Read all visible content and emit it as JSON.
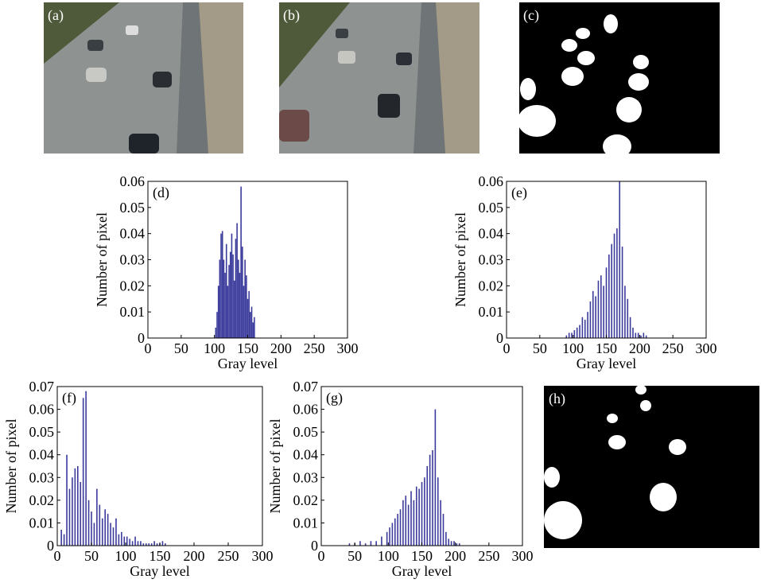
{
  "image_labels": [
    "(a)",
    "(b)",
    "(c)",
    "(h)"
  ],
  "chart_data": [
    {
      "type": "bar",
      "label": "(d)",
      "xlabel": "Gray level",
      "ylabel": "Number of pixel",
      "color": "#3b3b9c",
      "x": [
        102,
        104,
        106,
        108,
        110,
        112,
        114,
        116,
        118,
        120,
        122,
        124,
        126,
        128,
        130,
        132,
        134,
        136,
        138,
        140,
        142,
        144,
        146,
        148,
        150,
        152,
        154,
        156,
        158,
        160
      ],
      "values": [
        0.004,
        0.01,
        0.02,
        0.03,
        0.04,
        0.041,
        0.03,
        0.025,
        0.036,
        0.02,
        0.028,
        0.033,
        0.04,
        0.032,
        0.022,
        0.038,
        0.044,
        0.03,
        0.025,
        0.058,
        0.035,
        0.02,
        0.03,
        0.024,
        0.015,
        0.018,
        0.01,
        0.012,
        0.006,
        0.008
      ],
      "xlim": [
        0,
        300
      ],
      "xticks": [
        0,
        50,
        100,
        150,
        200,
        250,
        300
      ],
      "ylim": [
        0,
        0.06
      ],
      "yticks": [
        0,
        0.01,
        0.02,
        0.03,
        0.04,
        0.05,
        0.06
      ]
    },
    {
      "type": "bar",
      "label": "(e)",
      "xlabel": "Gray level",
      "ylabel": "Number of pixel",
      "color": "#3b3b9c",
      "x": [
        90,
        94,
        98,
        102,
        106,
        110,
        114,
        118,
        122,
        126,
        130,
        134,
        138,
        142,
        146,
        150,
        154,
        158,
        162,
        166,
        170,
        174,
        178,
        182,
        186,
        190,
        194,
        198,
        202,
        206,
        210
      ],
      "values": [
        0.001,
        0.002,
        0.002,
        0.003,
        0.004,
        0.005,
        0.008,
        0.007,
        0.01,
        0.014,
        0.018,
        0.016,
        0.022,
        0.024,
        0.02,
        0.027,
        0.032,
        0.036,
        0.04,
        0.042,
        0.06,
        0.035,
        0.02,
        0.015,
        0.008,
        0.004,
        0.002,
        0.002,
        0.001,
        0.002,
        0.001
      ],
      "xlim": [
        0,
        300
      ],
      "xticks": [
        0,
        50,
        100,
        150,
        200,
        250,
        300
      ],
      "ylim": [
        0,
        0.06
      ],
      "yticks": [
        0,
        0.01,
        0.02,
        0.03,
        0.04,
        0.05,
        0.06
      ]
    },
    {
      "type": "bar",
      "label": "(f)",
      "xlabel": "Gray level",
      "ylabel": "Number of pixel",
      "color": "#3b3b9c",
      "x": [
        6,
        10,
        14,
        18,
        22,
        26,
        30,
        34,
        38,
        42,
        46,
        50,
        54,
        58,
        62,
        66,
        70,
        74,
        78,
        82,
        86,
        90,
        94,
        98,
        102,
        106,
        110,
        114,
        118,
        122,
        126,
        130,
        134,
        138,
        142,
        146,
        150,
        154,
        158
      ],
      "values": [
        0.007,
        0.005,
        0.04,
        0.025,
        0.03,
        0.034,
        0.035,
        0.028,
        0.065,
        0.068,
        0.02,
        0.015,
        0.01,
        0.025,
        0.018,
        0.012,
        0.016,
        0.014,
        0.01,
        0.008,
        0.012,
        0.005,
        0.006,
        0.004,
        0.004,
        0.003,
        0.002,
        0.004,
        0.002,
        0.002,
        0.001,
        0.001,
        0.001,
        0.001,
        0.002,
        0.001,
        0.001,
        0.002,
        0.001
      ],
      "xlim": [
        0,
        300
      ],
      "xticks": [
        0,
        50,
        100,
        150,
        200,
        250,
        300
      ],
      "ylim": [
        0,
        0.07
      ],
      "yticks": [
        0,
        0.01,
        0.02,
        0.03,
        0.04,
        0.05,
        0.06,
        0.07
      ]
    },
    {
      "type": "bar",
      "label": "(g)",
      "xlabel": "Gray level",
      "ylabel": "Number of pixel",
      "color": "#3b3b9c",
      "x": [
        42,
        50,
        58,
        66,
        74,
        82,
        90,
        98,
        102,
        106,
        110,
        114,
        118,
        122,
        126,
        130,
        134,
        138,
        142,
        146,
        150,
        154,
        158,
        162,
        166,
        170,
        174,
        178,
        182,
        186,
        190,
        194,
        198,
        202,
        206
      ],
      "values": [
        0.001,
        0.001,
        0.002,
        0.001,
        0.002,
        0.002,
        0.004,
        0.006,
        0.008,
        0.01,
        0.012,
        0.014,
        0.016,
        0.02,
        0.022,
        0.018,
        0.024,
        0.02,
        0.026,
        0.025,
        0.028,
        0.03,
        0.035,
        0.04,
        0.042,
        0.06,
        0.03,
        0.02,
        0.014,
        0.006,
        0.003,
        0.002,
        0.002,
        0.001,
        0.001
      ],
      "xlim": [
        0,
        300
      ],
      "xticks": [
        0,
        50,
        100,
        150,
        200,
        250,
        300
      ],
      "ylim": [
        0,
        0.07
      ],
      "yticks": [
        0,
        0.01,
        0.02,
        0.03,
        0.04,
        0.05,
        0.06,
        0.07
      ]
    }
  ]
}
